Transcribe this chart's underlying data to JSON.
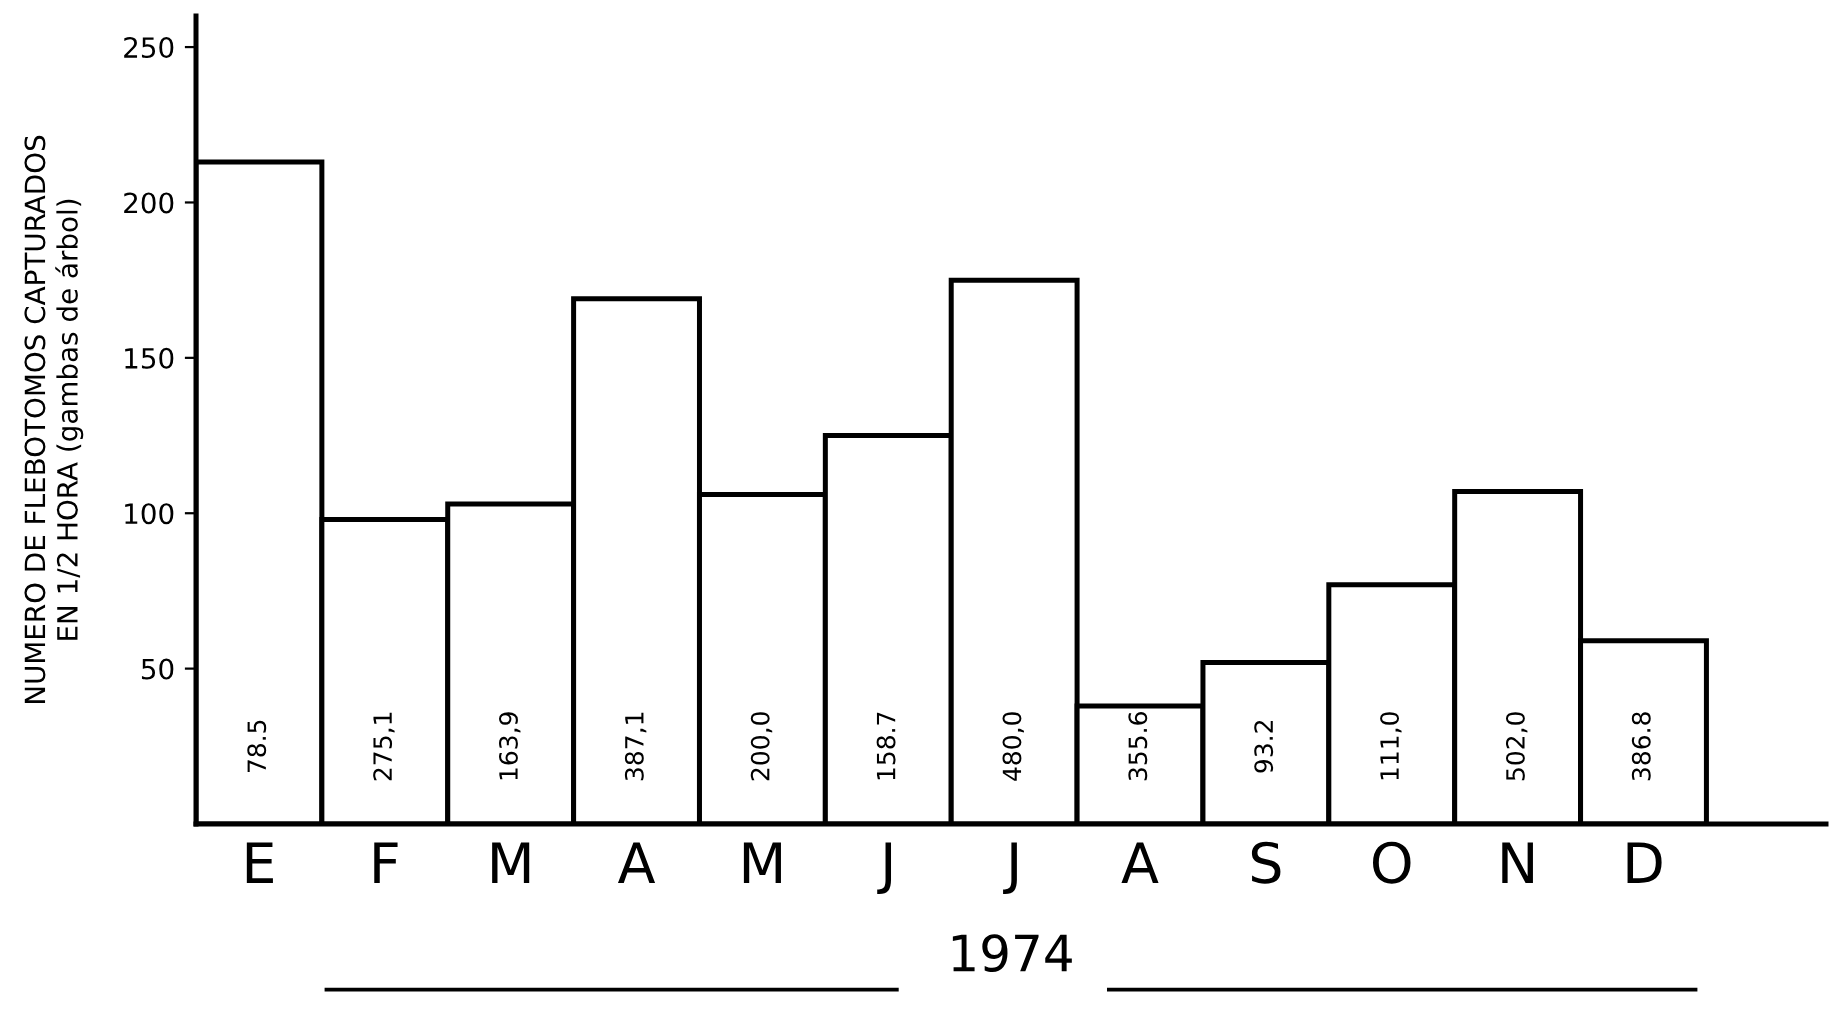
{
  "chart_data": {
    "type": "bar",
    "categories": [
      "E",
      "F",
      "M",
      "A",
      "M",
      "J",
      "J",
      "A",
      "S",
      "O",
      "N",
      "D"
    ],
    "values": [
      213,
      98,
      103,
      169,
      106,
      125,
      175,
      38,
      52,
      77,
      107,
      59
    ],
    "color": "#ffffff",
    "ylabel": "NUMERO DE FLEBOTOMOS CAPTURADOS\nEN 1/2 HORA (gambas de árbol)",
    "xlabel": "1974",
    "ylim": [
      0,
      260
    ],
    "yticks": [
      50,
      100,
      150,
      200,
      250
    ],
    "annotations": [
      "78.5",
      "275,1",
      "163,9",
      "387,1",
      "200,0",
      "158.7",
      "480,0",
      "355.6",
      "93.2",
      "111,0",
      "502,0",
      "386.8"
    ],
    "grid": false
  }
}
